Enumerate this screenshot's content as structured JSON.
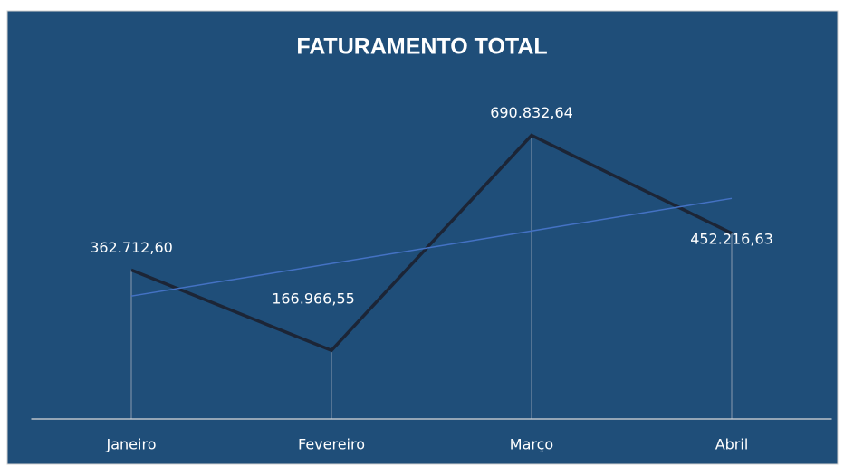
{
  "chart_data": {
    "type": "line",
    "title": "FATURAMENTO TOTAL",
    "categories": [
      "Janeiro",
      "Fevereiro",
      "Março",
      "Abril"
    ],
    "values": [
      362712.6,
      166966.55,
      690832.64,
      452216.63
    ],
    "value_labels": [
      "362.712,60",
      "166.966,55",
      "690.832,64",
      "452.216,63"
    ],
    "color": "#1c2536",
    "trendline": true,
    "trendline_color": "#4472c4",
    "drop_lines": true,
    "ylim": [
      0,
      800000
    ]
  }
}
